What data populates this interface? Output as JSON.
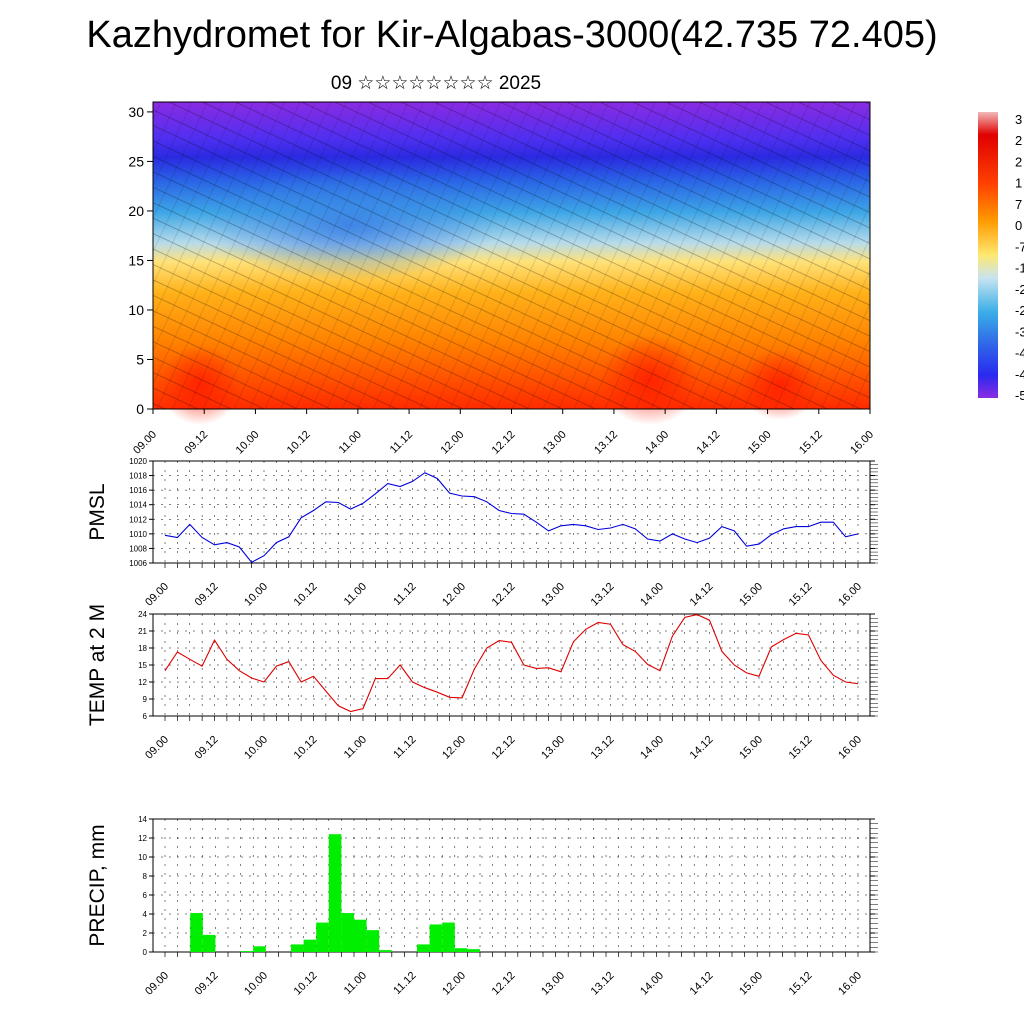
{
  "title": "Kazhydromet for Kir-Algabas-3000(42.735 72.405)",
  "subtitle": "09 ☆☆☆☆☆☆☆☆ 2025",
  "chart_data": [
    {
      "type": "heatmap",
      "description_free": true,
      "x_tick_labels": [
        "09.00",
        "09.12",
        "10.00",
        "10.12",
        "11.00",
        "11.12",
        "12.00",
        "12.12",
        "13.00",
        "13.12",
        "14.00",
        "14.12",
        "15.00",
        "15.12",
        "16.00"
      ],
      "y_ticks": [
        0,
        5,
        10,
        15,
        20,
        25,
        30
      ],
      "ylim": [
        0,
        31
      ],
      "colorbar_labels": [
        "3",
        "2",
        "2",
        "1",
        "7",
        "0",
        "-7",
        "-1",
        "-2",
        "-2",
        "-3",
        "-4",
        "-4",
        "-5"
      ],
      "colormap": [
        "#7a22e6",
        "#2e2ef0",
        "#2f7ee8",
        "#3aaee3",
        "#9fd0e6",
        "#ffe36a",
        "#ffb000",
        "#ff7a00",
        "#ff3e00",
        "#e60000",
        "#ff8080"
      ]
    },
    {
      "type": "line",
      "ylabel": "PMSL",
      "x_tick_labels": [
        "09.00",
        "09.12",
        "10.00",
        "10.12",
        "11.00",
        "11.12",
        "12.00",
        "12.12",
        "13.00",
        "13.12",
        "14.00",
        "14.12",
        "15.00",
        "15.12",
        "16.00"
      ],
      "y_ticks": [
        1006,
        1008,
        1010,
        1012,
        1014,
        1016,
        1018,
        1020
      ],
      "ylim": [
        1006,
        1020
      ],
      "color": "#0000dd",
      "values": [
        1009.8,
        1009.5,
        1011.3,
        1009.5,
        1008.5,
        1008.8,
        1008.2,
        1006.1,
        1007.0,
        1008.8,
        1009.6,
        1012.2,
        1013.2,
        1014.4,
        1014.3,
        1013.4,
        1014.2,
        1015.5,
        1016.9,
        1016.5,
        1017.2,
        1018.4,
        1017.6,
        1015.6,
        1015.2,
        1015.1,
        1014.4,
        1013.2,
        1012.8,
        1012.7,
        1011.6,
        1010.4,
        1011.1,
        1011.3,
        1011.1,
        1010.6,
        1010.8,
        1011.3,
        1010.7,
        1009.3,
        1009.0,
        1010.0,
        1009.3,
        1008.8,
        1009.4,
        1011.0,
        1010.4,
        1008.3,
        1008.6,
        1009.9,
        1010.7,
        1011.0,
        1011.0,
        1011.6,
        1011.6,
        1009.6,
        1010.0
      ]
    },
    {
      "type": "line",
      "ylabel": "TEMP at 2 M",
      "x_tick_labels": [
        "09.00",
        "09.12",
        "10.00",
        "10.12",
        "11.00",
        "11.12",
        "12.00",
        "12.12",
        "13.00",
        "13.12",
        "14.00",
        "14.12",
        "15.00",
        "15.12",
        "16.00"
      ],
      "y_ticks": [
        6,
        9,
        12,
        15,
        18,
        21,
        24
      ],
      "ylim": [
        6,
        24
      ],
      "color": "#dd0000",
      "values": [
        14.0,
        17.3,
        16.0,
        14.8,
        19.4,
        16.0,
        14.0,
        12.7,
        12.0,
        14.8,
        15.6,
        12.0,
        13.0,
        10.4,
        7.8,
        6.8,
        7.3,
        12.6,
        12.6,
        15.0,
        12.0,
        11.0,
        10.2,
        9.3,
        9.2,
        14.3,
        18.0,
        19.3,
        19.0,
        15.0,
        14.4,
        14.5,
        13.8,
        19.1,
        21.3,
        22.5,
        22.2,
        18.6,
        17.4,
        15.1,
        14.0,
        20.1,
        23.4,
        23.9,
        22.9,
        17.4,
        15.0,
        13.6,
        13.0,
        18.2,
        19.5,
        20.6,
        20.3,
        15.8,
        13.2,
        12.0,
        11.7
      ]
    },
    {
      "type": "bar",
      "ylabel": "PRECIP, mm",
      "x_tick_labels": [
        "09.00",
        "09.12",
        "10.00",
        "10.12",
        "11.00",
        "11.12",
        "12.00",
        "12.12",
        "13.00",
        "13.12",
        "14.00",
        "14.12",
        "15.00",
        "15.12",
        "16.00"
      ],
      "y_ticks": [
        0,
        2,
        4,
        6,
        8,
        10,
        12,
        14
      ],
      "ylim": [
        0,
        14
      ],
      "color": "#00ee00",
      "values": [
        0,
        0,
        4.1,
        1.8,
        0,
        0,
        0.1,
        0.6,
        0,
        0,
        0.8,
        1.3,
        3.1,
        12.4,
        4.1,
        3.4,
        2.3,
        0.2,
        0,
        0,
        0.8,
        2.9,
        3.1,
        0.4,
        0.3,
        0,
        0,
        0,
        0,
        0,
        0,
        0,
        0,
        0,
        0,
        0,
        0,
        0,
        0,
        0,
        0,
        0,
        0,
        0,
        0,
        0,
        0,
        0,
        0,
        0,
        0,
        0,
        0,
        0,
        0,
        0
      ]
    }
  ]
}
